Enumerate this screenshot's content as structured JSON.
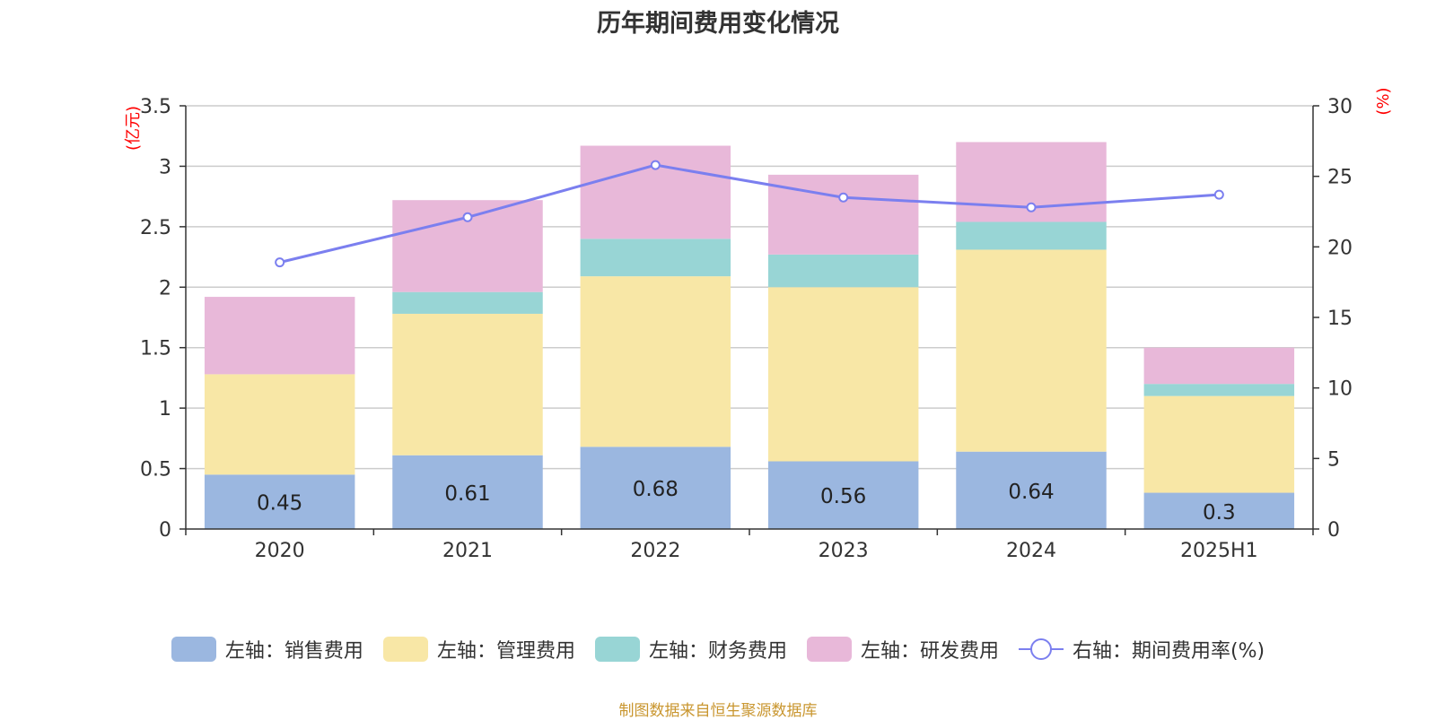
{
  "title": "历年期间费用变化情况",
  "source": "制图数据来自恒生聚源数据库",
  "legend": [
    {
      "label": "左轴：销售费用",
      "color": "#9bb7e0",
      "kind": "bar"
    },
    {
      "label": "左轴：管理费用",
      "color": "#f8e7a6",
      "kind": "bar"
    },
    {
      "label": "左轴：财务费用",
      "color": "#98d5d5",
      "kind": "bar"
    },
    {
      "label": "左轴：研发费用",
      "color": "#e8b8d9",
      "kind": "bar"
    },
    {
      "label": "右轴：期间费用率(%)",
      "color": "#7b7fef",
      "kind": "line"
    }
  ],
  "chart_data": {
    "type": "bar",
    "stacked": true,
    "categories": [
      "2020",
      "2021",
      "2022",
      "2023",
      "2024",
      "2025H1"
    ],
    "series": [
      {
        "name": "左轴：销售费用",
        "axis": "left",
        "color": "#9bb7e0",
        "values": [
          0.45,
          0.61,
          0.68,
          0.56,
          0.64,
          0.3
        ],
        "show_labels": true
      },
      {
        "name": "左轴：管理费用",
        "axis": "left",
        "color": "#f8e7a6",
        "values": [
          0.83,
          1.17,
          1.41,
          1.44,
          1.67,
          0.8
        ]
      },
      {
        "name": "左轴：财务费用",
        "axis": "left",
        "color": "#98d5d5",
        "values": [
          0.0,
          0.18,
          0.31,
          0.27,
          0.23,
          0.1
        ]
      },
      {
        "name": "左轴：研发费用",
        "axis": "left",
        "color": "#e8b8d9",
        "values": [
          0.64,
          0.76,
          0.77,
          0.66,
          0.66,
          0.3
        ]
      },
      {
        "name": "右轴：期间费用率(%)",
        "axis": "right",
        "type": "line",
        "color": "#7b7fef",
        "values": [
          18.9,
          22.1,
          25.8,
          23.5,
          22.8,
          23.7
        ]
      }
    ],
    "left_axis": {
      "label": "(亿元)",
      "min": 0,
      "max": 3.5,
      "ticks": [
        "0",
        "0.5",
        "1",
        "1.5",
        "2",
        "2.5",
        "3",
        "3.5"
      ]
    },
    "right_axis": {
      "label": "(%)",
      "min": 0,
      "max": 30,
      "ticks": [
        "0",
        "5",
        "10",
        "15",
        "20",
        "25",
        "30"
      ]
    },
    "grid": true,
    "legend_position": "bottom"
  }
}
